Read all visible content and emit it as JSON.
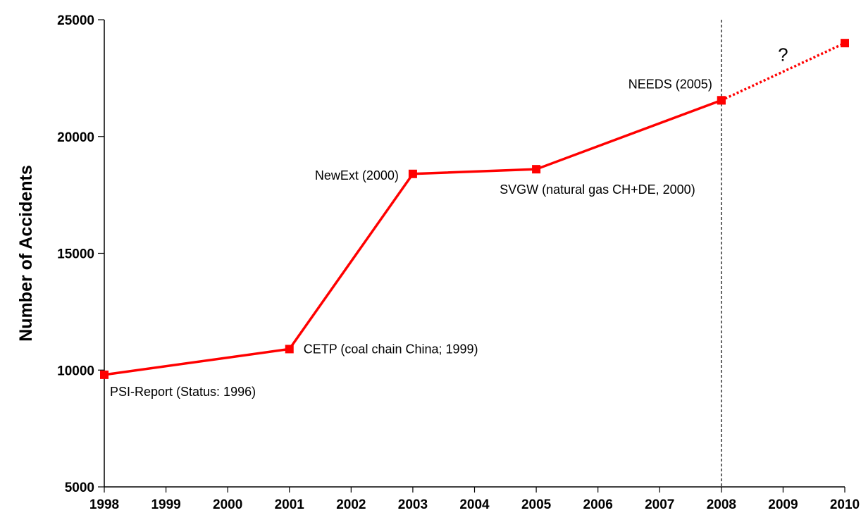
{
  "chart_data": {
    "type": "line",
    "title": "",
    "xlabel": "",
    "ylabel": "Number of Accidents",
    "xlim": [
      1998,
      2010
    ],
    "ylim": [
      5000,
      25000
    ],
    "x_ticks": [
      "1998",
      "1999",
      "2000",
      "2001",
      "2002",
      "2003",
      "2004",
      "2005",
      "2006",
      "2007",
      "2008",
      "2009",
      "2010"
    ],
    "y_ticks": [
      "5000",
      "10000",
      "15000",
      "20000",
      "25000"
    ],
    "grid": false,
    "series": [
      {
        "color": "#ff0000",
        "marker": "square",
        "line_style": "solid",
        "points": [
          {
            "x": 1998,
            "y": 9800,
            "label": "PSI-Report (Status: 1996)"
          },
          {
            "x": 2001,
            "y": 10900,
            "label": "CETP (coal chain China; 1999)"
          },
          {
            "x": 2003,
            "y": 18400,
            "label": "NewExt (2000)"
          },
          {
            "x": 2005,
            "y": 18600,
            "label": "SVGW (natural gas CH+DE, 2000)"
          },
          {
            "x": 2008,
            "y": 21550,
            "label": "NEEDS (2005)"
          }
        ]
      },
      {
        "color": "#ff0000",
        "marker": "square",
        "line_style": "dotted",
        "points": [
          {
            "x": 2008,
            "y": 21550
          },
          {
            "x": 2010,
            "y": 24000
          }
        ]
      }
    ],
    "reference_line": {
      "x": 2008,
      "style": "dashed",
      "color": "#000000"
    },
    "annotations": [
      {
        "text": "?",
        "x": 2009,
        "y": 23500
      }
    ]
  }
}
